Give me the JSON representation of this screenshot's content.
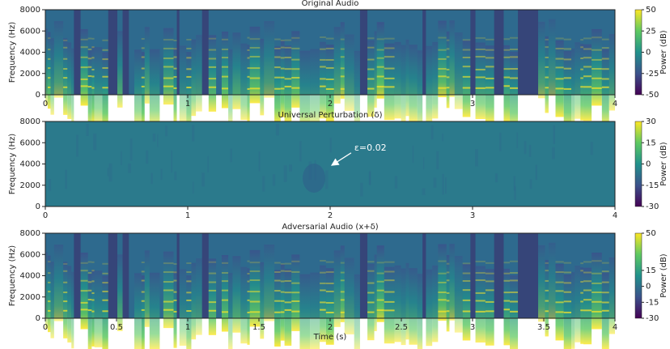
{
  "chart_data": [
    {
      "type": "spectrogram",
      "title": "Original Audio",
      "ylabel": "Frequency (Hz)",
      "xlim": [
        0,
        4
      ],
      "xticks": [
        0,
        1,
        2,
        3,
        4
      ],
      "ylim": [
        0,
        8000
      ],
      "yticks": [
        0,
        2000,
        4000,
        6000,
        8000
      ],
      "colormap": "viridis",
      "colorbar": {
        "label": "Power (dB)",
        "lim": [
          -50,
          50
        ],
        "ticks": [
          -50,
          -25,
          0,
          25,
          50
        ]
      }
    },
    {
      "type": "spectrogram",
      "title": "Universal Perturbation (δ)",
      "ylabel": "Frequency (Hz)",
      "xlim": [
        0,
        4
      ],
      "xticks": [
        0,
        1,
        2,
        3,
        4
      ],
      "ylim": [
        0,
        8000
      ],
      "yticks": [
        0,
        2000,
        4000,
        6000,
        8000
      ],
      "colormap": "viridis",
      "colorbar": {
        "label": "Power (dB)",
        "lim": [
          -30,
          30
        ],
        "ticks": [
          -30,
          -15,
          0,
          15,
          30
        ]
      },
      "annotation": {
        "text": "ε=0.02",
        "xy": [
          2.0,
          3700
        ],
        "xytext": [
          2.17,
          5500
        ]
      }
    },
    {
      "type": "spectrogram",
      "title": "Adversarial Audio (x+δ)",
      "ylabel": "Frequency (Hz)",
      "xlabel": "Time (s)",
      "xlim": [
        0,
        4
      ],
      "xticks": [
        0,
        0.5,
        1,
        1.5,
        2,
        2.5,
        3,
        3.5,
        4
      ],
      "ylim": [
        0,
        8000
      ],
      "yticks": [
        0,
        2000,
        4000,
        6000,
        8000
      ],
      "colormap": "viridis",
      "colorbar": {
        "label": "Power (dB)",
        "lim": [
          -30,
          50
        ],
        "ticks": [
          -30,
          -15,
          0,
          15,
          50
        ]
      }
    }
  ]
}
